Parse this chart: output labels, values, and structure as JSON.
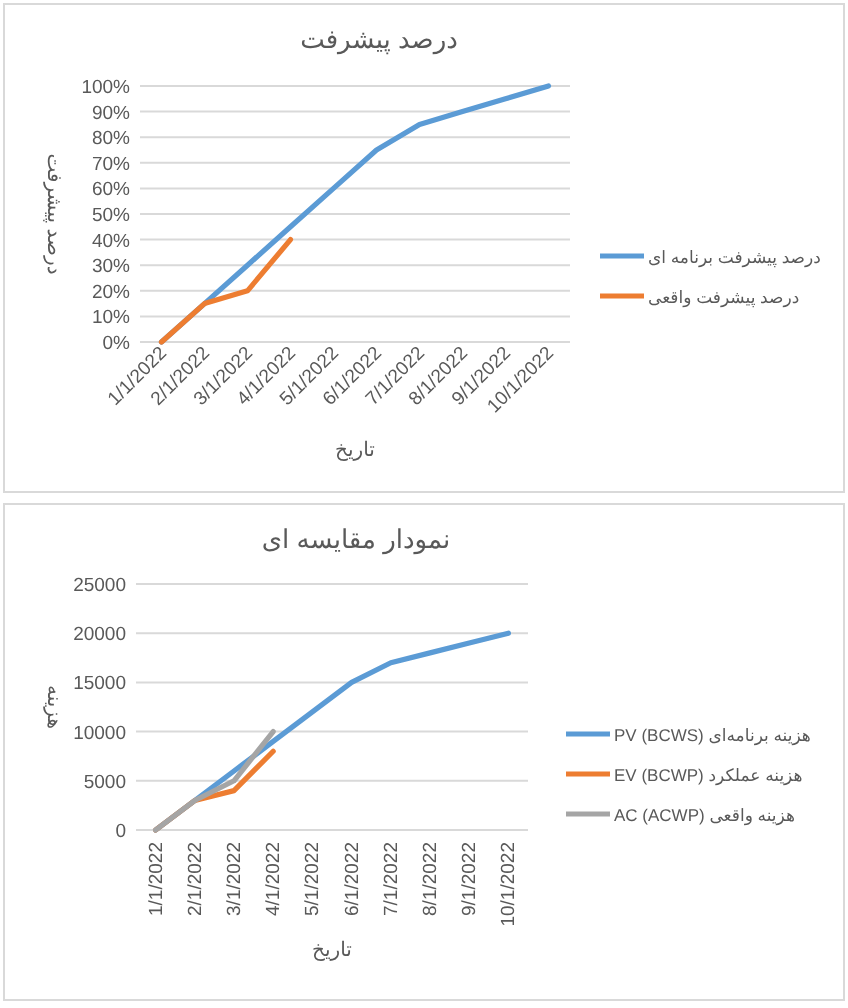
{
  "chart_data": [
    {
      "type": "line",
      "title": "درصد پیشرفت",
      "xlabel": "تاریخ",
      "ylabel": "درصد پیشرفت",
      "categories": [
        "1/1/2022",
        "2/1/2022",
        "3/1/2022",
        "4/1/2022",
        "5/1/2022",
        "6/1/2022",
        "7/1/2022",
        "8/1/2022",
        "9/1/2022",
        "10/1/2022"
      ],
      "series": [
        {
          "name": "درصد پیشرفت برنامه ای",
          "color": "#5b9bd5",
          "values": [
            0,
            15,
            30,
            45,
            60,
            75,
            85,
            90,
            95,
            100
          ]
        },
        {
          "name": "درصد پیشرفت واقعی",
          "color": "#ed7d31",
          "values": [
            0,
            15,
            20,
            40,
            null,
            null,
            null,
            null,
            null,
            null
          ]
        }
      ],
      "ylim": [
        0,
        100
      ],
      "yticks": [
        {
          "value": 0,
          "label": "0%"
        },
        {
          "value": 10,
          "label": "10%"
        },
        {
          "value": 20,
          "label": "20%"
        },
        {
          "value": 30,
          "label": "30%"
        },
        {
          "value": 40,
          "label": "40%"
        },
        {
          "value": 50,
          "label": "50%"
        },
        {
          "value": 60,
          "label": "60%"
        },
        {
          "value": 70,
          "label": "70%"
        },
        {
          "value": 80,
          "label": "80%"
        },
        {
          "value": 90,
          "label": "90%"
        },
        {
          "value": 100,
          "label": "100%"
        }
      ],
      "grid": "y",
      "legend": "right"
    },
    {
      "type": "line",
      "title": "نمودار مقایسه ای",
      "xlabel": "تاریخ",
      "ylabel": "هزینه",
      "categories": [
        "1/1/2022",
        "2/1/2022",
        "3/1/2022",
        "4/1/2022",
        "5/1/2022",
        "6/1/2022",
        "7/1/2022",
        "8/1/2022",
        "9/1/2022",
        "10/1/2022"
      ],
      "series": [
        {
          "name": "هزینه برنامه‌ای PV (BCWS)",
          "color": "#5b9bd5",
          "values": [
            0,
            3000,
            6000,
            9000,
            12000,
            15000,
            17000,
            18000,
            19000,
            20000
          ]
        },
        {
          "name": "هزینه عملکرد EV (BCWP)",
          "color": "#ed7d31",
          "values": [
            0,
            3000,
            4000,
            8000,
            null,
            null,
            null,
            null,
            null,
            null
          ]
        },
        {
          "name": "هزینه واقعی AC (ACWP)",
          "color": "#a5a5a5",
          "values": [
            0,
            3000,
            5000,
            10000,
            null,
            null,
            null,
            null,
            null,
            null
          ]
        }
      ],
      "ylim": [
        0,
        25000
      ],
      "yticks": [
        0,
        5000,
        10000,
        15000,
        20000,
        25000
      ],
      "grid": "y",
      "legend": "right"
    }
  ]
}
